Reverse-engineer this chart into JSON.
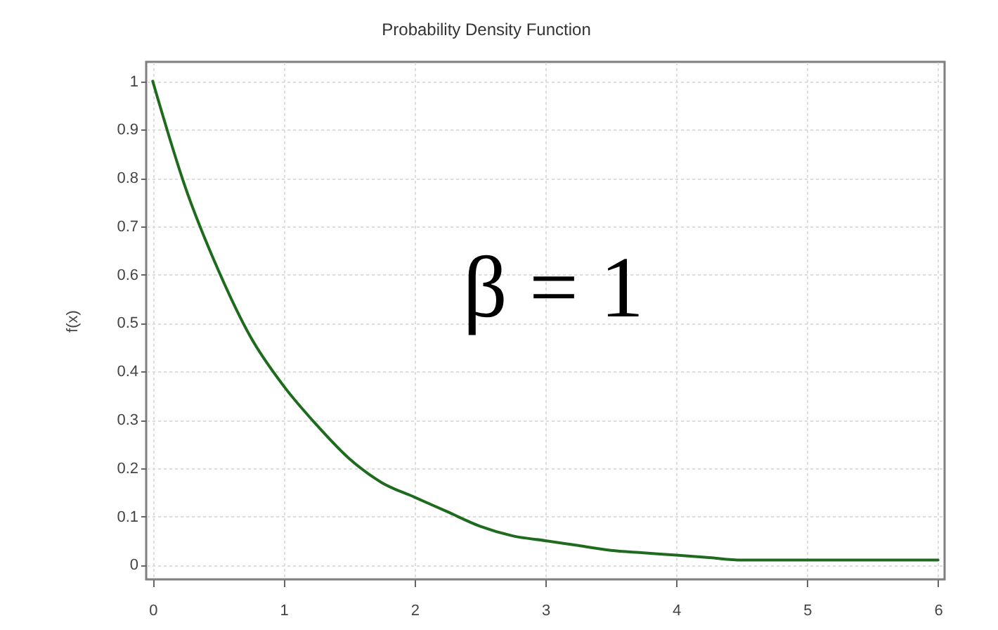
{
  "chart_data": {
    "type": "line",
    "title": "Probability Density Function",
    "ylabel": "f(x)",
    "x": [
      0,
      0.25,
      0.5,
      0.75,
      1,
      1.25,
      1.5,
      1.75,
      2,
      2.25,
      2.5,
      2.75,
      3,
      3.25,
      3.5,
      3.75,
      4,
      4.25,
      4.5,
      4.75,
      5,
      5.25,
      5.5,
      5.75,
      6
    ],
    "series": [
      {
        "color": "#1e6b1e",
        "values": [
          1,
          0.78,
          0.61,
          0.47,
          0.37,
          0.29,
          0.22,
          0.17,
          0.14,
          0.11,
          0.08,
          0.06,
          0.05,
          0.04,
          0.03,
          0.025,
          0.02,
          0.015,
          0.01,
          0.01,
          0.01,
          0.01,
          0.01,
          0.01,
          0.01
        ]
      }
    ],
    "xlim": [
      -0.05,
      6.05
    ],
    "ylim": [
      -0.03,
      1.04
    ],
    "xticks": [
      0,
      1,
      2,
      3,
      4,
      5,
      6
    ],
    "yticks": [
      0,
      0.1,
      0.2,
      0.3,
      0.4,
      0.5,
      0.6,
      0.7,
      0.8,
      0.9,
      1
    ],
    "grid": true,
    "line_style": "solid",
    "annotations": [
      "β = 1"
    ]
  }
}
